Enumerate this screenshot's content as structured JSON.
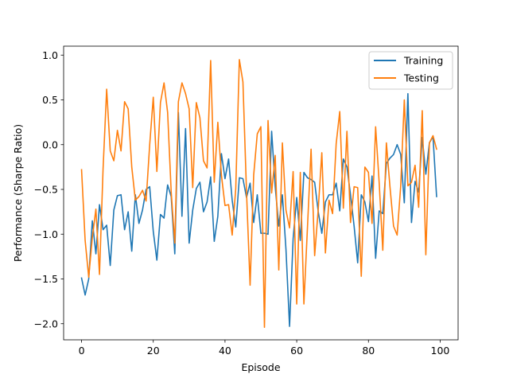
{
  "chart_data": {
    "type": "line",
    "title": "",
    "xlabel": "Episode",
    "ylabel": "Performance (Sharpe Ratio)",
    "xlim": [
      -5,
      105
    ],
    "ylim": [
      -2.18,
      1.1
    ],
    "xticks": [
      0,
      20,
      40,
      60,
      80,
      100
    ],
    "yticks": [
      -2.0,
      -1.5,
      -1.0,
      -0.5,
      0.0,
      0.5,
      1.0
    ],
    "ytick_labels": [
      "−2.0",
      "−1.5",
      "−1.0",
      "−0.5",
      "0.0",
      "0.5",
      "1.0"
    ],
    "grid": false,
    "legend_position": "top-right",
    "series": [
      {
        "name": "Training",
        "color": "#1f77b4",
        "x": [
          0,
          1,
          2,
          3,
          4,
          5,
          6,
          7,
          8,
          9,
          10,
          11,
          12,
          13,
          14,
          15,
          16,
          17,
          18,
          19,
          20,
          21,
          22,
          23,
          24,
          25,
          26,
          27,
          28,
          29,
          30,
          31,
          32,
          33,
          34,
          35,
          36,
          37,
          38,
          39,
          40,
          41,
          42,
          43,
          44,
          45,
          46,
          47,
          48,
          49,
          50,
          51,
          52,
          53,
          54,
          55,
          56,
          57,
          58,
          59,
          60,
          61,
          62,
          63,
          64,
          65,
          66,
          67,
          68,
          69,
          70,
          71,
          72,
          73,
          74,
          75,
          76,
          77,
          78,
          79,
          80,
          81,
          82,
          83,
          84,
          85,
          86,
          87,
          88,
          89,
          90,
          91,
          92,
          93,
          94,
          95,
          96,
          97,
          98,
          99
        ],
        "y": [
          -1.49,
          -1.68,
          -1.5,
          -0.85,
          -1.22,
          -0.67,
          -0.95,
          -0.9,
          -1.35,
          -0.73,
          -0.57,
          -0.56,
          -0.95,
          -0.75,
          -1.19,
          -0.56,
          -0.88,
          -0.73,
          -0.5,
          -0.47,
          -0.97,
          -1.29,
          -0.78,
          -0.82,
          -0.45,
          -0.58,
          -1.22,
          0.36,
          -0.8,
          0.18,
          -1.1,
          -0.73,
          -0.49,
          -0.42,
          -0.75,
          -0.64,
          -0.36,
          -1.08,
          -0.8,
          -0.1,
          -0.38,
          -0.16,
          -0.62,
          -0.92,
          -0.37,
          -0.38,
          -0.59,
          -0.43,
          -0.87,
          -0.56,
          -0.99,
          -0.99,
          -1.0,
          0.15,
          -0.47,
          -0.91,
          -0.56,
          -1.17,
          -2.03,
          -1.05,
          -0.59,
          -1.07,
          -0.31,
          -0.37,
          -0.39,
          -0.42,
          -0.75,
          -0.99,
          -0.64,
          -0.56,
          -0.56,
          -0.43,
          -0.74,
          -0.16,
          -0.25,
          -0.56,
          -0.91,
          -1.32,
          -0.56,
          -0.64,
          -0.86,
          -0.35,
          -1.27,
          -0.74,
          -0.77,
          -0.21,
          -0.15,
          -0.11,
          0.0,
          -0.11,
          -0.65,
          0.57,
          -0.87,
          -0.41,
          -0.53,
          0.08,
          -0.33,
          0.02,
          0.09,
          -0.58
        ]
      },
      {
        "name": "Testing",
        "color": "#ff7f0e",
        "x": [
          0,
          1,
          2,
          3,
          4,
          5,
          6,
          7,
          8,
          9,
          10,
          11,
          12,
          13,
          14,
          15,
          16,
          17,
          18,
          19,
          20,
          21,
          22,
          23,
          24,
          25,
          26,
          27,
          28,
          29,
          30,
          31,
          32,
          33,
          34,
          35,
          36,
          37,
          38,
          39,
          40,
          41,
          42,
          43,
          44,
          45,
          46,
          47,
          48,
          49,
          50,
          51,
          52,
          53,
          54,
          55,
          56,
          57,
          58,
          59,
          60,
          61,
          62,
          63,
          64,
          65,
          66,
          67,
          68,
          69,
          70,
          71,
          72,
          73,
          74,
          75,
          76,
          77,
          78,
          79,
          80,
          81,
          82,
          83,
          84,
          85,
          86,
          87,
          88,
          89,
          90,
          91,
          92,
          93,
          94,
          95,
          96,
          97,
          98,
          99
        ],
        "y": [
          -0.28,
          -1.07,
          -1.48,
          -1.04,
          -0.72,
          -1.45,
          -0.27,
          0.62,
          -0.07,
          -0.18,
          0.16,
          -0.07,
          0.48,
          0.4,
          -0.25,
          -0.62,
          -0.58,
          -0.51,
          -0.63,
          0.0,
          0.53,
          -0.3,
          0.47,
          0.69,
          0.36,
          -0.53,
          -1.1,
          0.48,
          0.69,
          0.57,
          0.4,
          -0.48,
          0.47,
          0.3,
          -0.18,
          -0.26,
          0.94,
          -0.42,
          0.25,
          -0.34,
          -0.68,
          -0.67,
          -1.01,
          -0.49,
          0.95,
          0.7,
          -0.53,
          -1.57,
          -0.34,
          0.12,
          0.2,
          -2.04,
          0.27,
          -0.54,
          -0.12,
          -1.4,
          0.02,
          -0.73,
          -0.93,
          -0.3,
          -1.78,
          -0.31,
          -1.78,
          -0.92,
          -0.05,
          -1.24,
          -0.72,
          -0.09,
          -1.21,
          -0.62,
          -0.77,
          0.01,
          0.37,
          -0.71,
          0.15,
          -0.87,
          -0.47,
          -0.48,
          -1.47,
          -0.25,
          -0.31,
          -0.88,
          0.2,
          -0.43,
          -1.18,
          0.02,
          -0.47,
          -0.91,
          -1.01,
          -0.46,
          0.5,
          -0.46,
          -0.42,
          -0.23,
          -0.7,
          0.38,
          -1.23,
          0.02,
          0.1,
          -0.05
        ]
      }
    ]
  }
}
